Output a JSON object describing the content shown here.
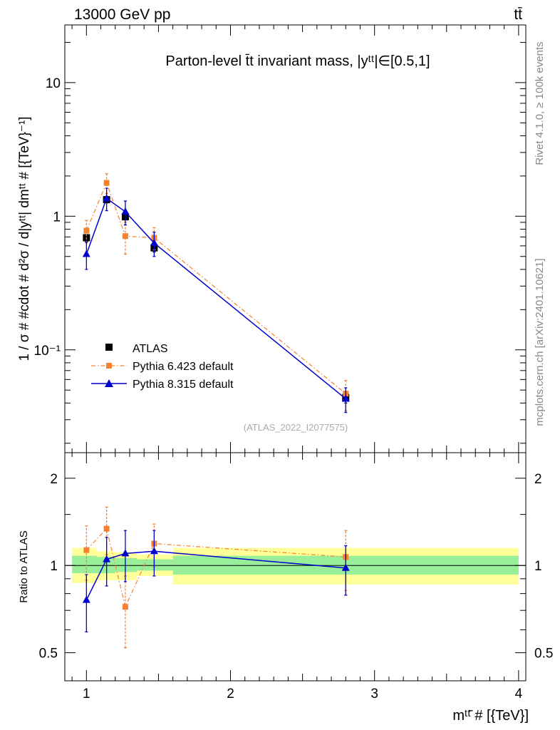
{
  "header": {
    "energy_label": "13000 GeV pp",
    "process_label": "tt̄"
  },
  "side_labels": {
    "rivet": "Rivet 4.1.0, ≥ 100k events",
    "mcplots": "mcplots.cern.ch [arXiv:2401.10621]"
  },
  "chart_data": [
    {
      "type": "line",
      "title": "Parton-level t̄t invariant mass, |yᵗᵗ|∈[0.5,1]",
      "watermark": "(ATLAS_2022_I2077575)",
      "xlabel": "mᵗᵗ̄ # [{TeV}]",
      "ylabel": "1 / σ # #cdot # d²σ / d|yᵗᵗ| dmᵗᵗ # [{TeV}⁻¹]",
      "yscale": "log",
      "xlim": [
        0.85,
        4.05
      ],
      "ylim": [
        0.017,
        27
      ],
      "y_tick_labels": [
        "10⁻¹",
        "1",
        "10"
      ],
      "legend_position": "lower-left",
      "series": [
        {
          "name": "ATLAS",
          "color": "#000000",
          "marker": "square",
          "x": [
            1.0,
            1.14,
            1.27,
            1.47,
            2.8
          ],
          "y": [
            0.69,
            1.33,
            0.99,
            0.58,
            0.044
          ],
          "yerr": [
            0.04,
            0.07,
            0.05,
            0.04,
            0.004
          ]
        },
        {
          "name": "Pythia 6.423 default",
          "color": "#f58231",
          "marker": "square",
          "linestyle": "dashdot",
          "x": [
            1.0,
            1.14,
            1.27,
            1.47,
            2.8
          ],
          "y": [
            0.78,
            1.78,
            0.71,
            0.69,
            0.047
          ],
          "yerr": [
            0.15,
            0.3,
            0.19,
            0.13,
            0.012
          ]
        },
        {
          "name": "Pythia 8.315 default",
          "color": "#0000cc",
          "marker": "triangle",
          "linestyle": "solid",
          "x": [
            1.0,
            1.14,
            1.27,
            1.47,
            2.8
          ],
          "y": [
            0.52,
            1.36,
            1.08,
            0.63,
            0.043
          ],
          "yerr": [
            0.12,
            0.26,
            0.22,
            0.13,
            0.009
          ]
        }
      ]
    },
    {
      "type": "line",
      "title": "",
      "xlabel": "mᵗᵗ̄ # [{TeV}]",
      "ylabel": "Ratio to ATLAS",
      "yscale": "log",
      "xlim": [
        0.85,
        4.05
      ],
      "ylim": [
        0.4,
        2.45
      ],
      "x_ticks": [
        1,
        2,
        3,
        4
      ],
      "y_ticks": [
        0.5,
        1,
        2
      ],
      "uncertainty_bands": [
        {
          "x0": 0.9,
          "x1": 1.07,
          "stat_lo": 0.94,
          "stat_hi": 1.08,
          "tot_lo": 0.87,
          "tot_hi": 1.15
        },
        {
          "x0": 1.07,
          "x1": 1.2,
          "stat_lo": 0.94,
          "stat_hi": 1.07,
          "tot_lo": 0.89,
          "tot_hi": 1.12
        },
        {
          "x0": 1.2,
          "x1": 1.35,
          "stat_lo": 0.95,
          "stat_hi": 1.06,
          "tot_lo": 0.89,
          "tot_hi": 1.11
        },
        {
          "x0": 1.35,
          "x1": 1.6,
          "stat_lo": 0.96,
          "stat_hi": 1.05,
          "tot_lo": 0.92,
          "tot_hi": 1.09
        },
        {
          "x0": 1.6,
          "x1": 4.0,
          "stat_lo": 0.93,
          "stat_hi": 1.08,
          "tot_lo": 0.86,
          "tot_hi": 1.15
        }
      ],
      "series": [
        {
          "name": "Pythia 6.423 default",
          "color": "#f58231",
          "marker": "square",
          "linestyle": "dashdot",
          "x": [
            1.0,
            1.14,
            1.27,
            1.47,
            2.8
          ],
          "y": [
            1.13,
            1.34,
            0.72,
            1.19,
            1.07
          ],
          "yerr": [
            0.24,
            0.25,
            0.2,
            0.2,
            0.25
          ]
        },
        {
          "name": "Pythia 8.315 default",
          "color": "#0000cc",
          "marker": "triangle",
          "linestyle": "solid",
          "x": [
            1.0,
            1.14,
            1.27,
            1.47,
            2.8
          ],
          "y": [
            0.76,
            1.05,
            1.1,
            1.12,
            0.98
          ],
          "yerr": [
            0.17,
            0.2,
            0.22,
            0.2,
            0.19
          ]
        }
      ]
    }
  ]
}
